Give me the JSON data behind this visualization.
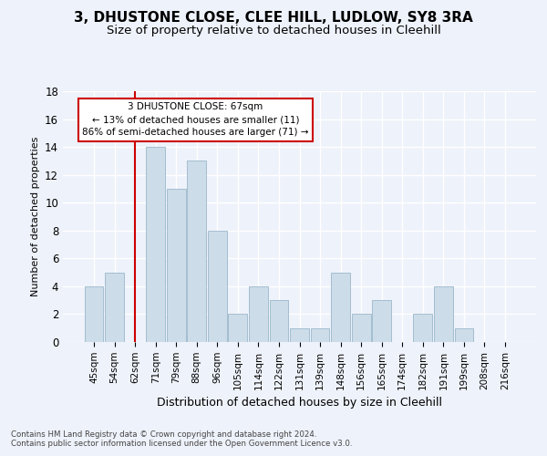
{
  "title_line1": "3, DHUSTONE CLOSE, CLEE HILL, LUDLOW, SY8 3RA",
  "title_line2": "Size of property relative to detached houses in Cleehill",
  "xlabel": "Distribution of detached houses by size in Cleehill",
  "ylabel": "Number of detached properties",
  "categories": [
    "45sqm",
    "54sqm",
    "62sqm",
    "71sqm",
    "79sqm",
    "88sqm",
    "96sqm",
    "105sqm",
    "114sqm",
    "122sqm",
    "131sqm",
    "139sqm",
    "148sqm",
    "156sqm",
    "165sqm",
    "174sqm",
    "182sqm",
    "191sqm",
    "199sqm",
    "208sqm",
    "216sqm"
  ],
  "values": [
    4,
    5,
    0,
    14,
    11,
    13,
    8,
    2,
    4,
    3,
    1,
    1,
    5,
    2,
    3,
    0,
    2,
    4,
    1,
    0,
    0
  ],
  "bar_color": "#ccdce8",
  "bar_edge_color": "#9ab8cc",
  "red_line_x": 2,
  "ylim": [
    0,
    18
  ],
  "yticks": [
    0,
    2,
    4,
    6,
    8,
    10,
    12,
    14,
    16,
    18
  ],
  "annotation_line1": "3 DHUSTONE CLOSE: 67sqm",
  "annotation_line2": "← 13% of detached houses are smaller (11)",
  "annotation_line3": "86% of semi-detached houses are larger (71) →",
  "annotation_box_color": "#ffffff",
  "annotation_box_edge_color": "#cc0000",
  "footnote_line1": "Contains HM Land Registry data © Crown copyright and database right 2024.",
  "footnote_line2": "Contains public sector information licensed under the Open Government Licence v3.0.",
  "background_color": "#eef2fa",
  "grid_color": "#ffffff",
  "title_fontsize": 11,
  "subtitle_fontsize": 9.5,
  "xlabel_fontsize": 9,
  "ylabel_fontsize": 8
}
